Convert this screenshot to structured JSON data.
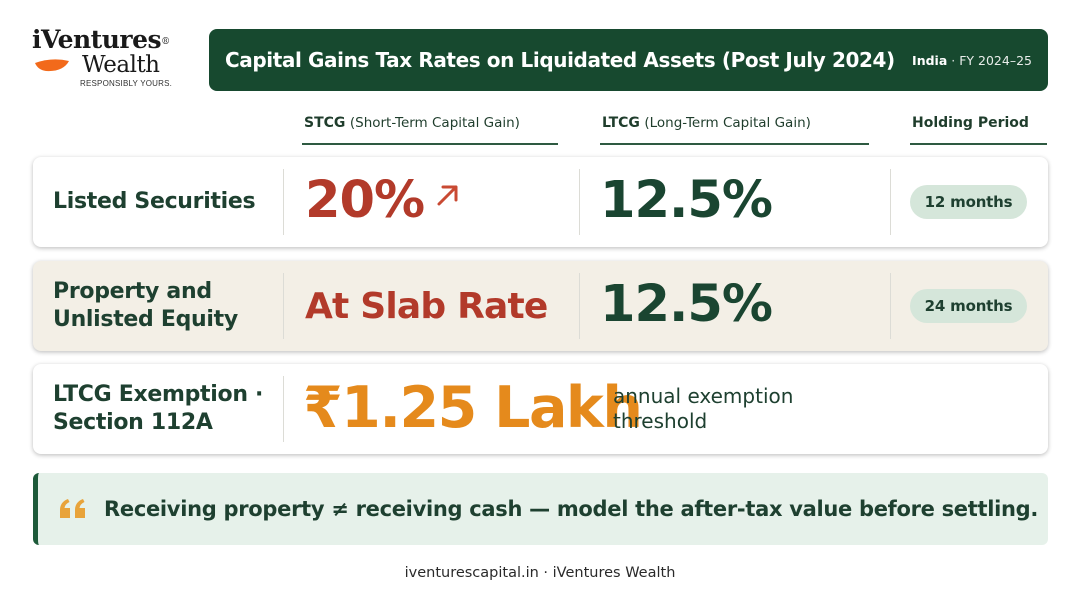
{
  "logo": {
    "name_top": "iVentures",
    "registered_mark": "®",
    "name_bottom": "Wealth",
    "tagline": "RESPONSIBLY YOURS."
  },
  "header": {
    "title": "Capital Gains Tax Rates on Liquidated Assets (Post July 2024)",
    "country": "India",
    "separator": "·",
    "fiscal_year": "FY 2024–25"
  },
  "columns": {
    "stcg_abbr": "STCG",
    "stcg_full": "(Short-Term Capital Gain)",
    "ltcg_abbr": "LTCG",
    "ltcg_full": "(Long-Term Capital Gain)",
    "holding": "Holding Period"
  },
  "rows": [
    {
      "label": "Listed Securities",
      "stcg": "20%",
      "ltcg": "12.5%",
      "holding": "12 months"
    },
    {
      "label_line1": "Property and",
      "label_line2": "Unlisted Equity",
      "stcg": "At Slab Rate",
      "ltcg": "12.5%",
      "holding": "24 months"
    }
  ],
  "exemption": {
    "label_line1": "LTCG Exemption ·",
    "label_line2": "Section 112A",
    "amount": "₹1.25 Lakh",
    "note_line1": "annual exemption",
    "note_line2": "threshold"
  },
  "quote": {
    "text": "Receiving property ≠ receiving cash — model the after-tax value before settling."
  },
  "footer": {
    "text": "iventurescapital.in · iVentures Wealth"
  },
  "colors": {
    "brand_green": "#17492f",
    "stcg_red": "#b23a2a",
    "ltcg_green": "#1a4531",
    "lakh_orange": "#e58a1c",
    "pill_bg": "#d5e6da",
    "quote_bg": "#e6f1ea"
  },
  "icons": {
    "logo_leaf": "orange-leaf-icon",
    "trend": "arrow-up-right-icon",
    "quote": "quote-mark-icon"
  }
}
